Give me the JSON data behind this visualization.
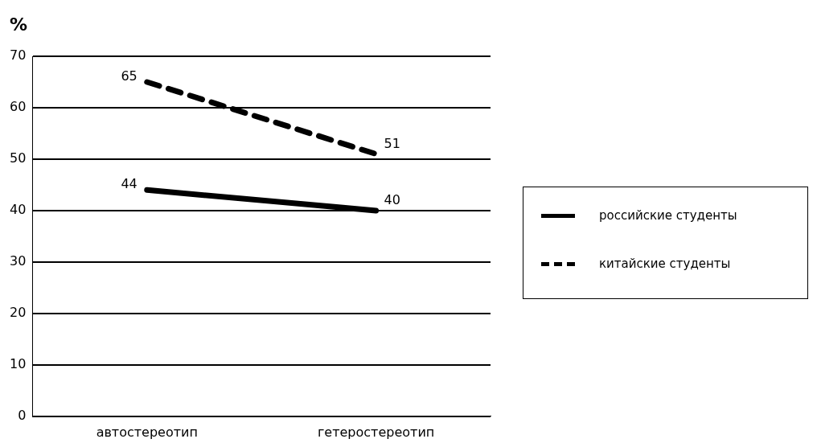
{
  "chart_data": {
    "type": "line",
    "ylabel": "%",
    "categories": [
      "автостереотип",
      "гетеростереотип"
    ],
    "series": [
      {
        "name": "российские студенты",
        "color": "#000000",
        "values": [
          44,
          40
        ],
        "line_style": "solid"
      },
      {
        "name": "китайские студенты",
        "color": "#000000",
        "values": [
          65,
          51
        ],
        "line_style": "dashed"
      }
    ],
    "ylim": [
      0,
      70
    ],
    "yticks": [
      0,
      10,
      20,
      30,
      40,
      50,
      60,
      70
    ],
    "grid": "y",
    "legend": "right",
    "data_labels": true,
    "marker": "none"
  }
}
